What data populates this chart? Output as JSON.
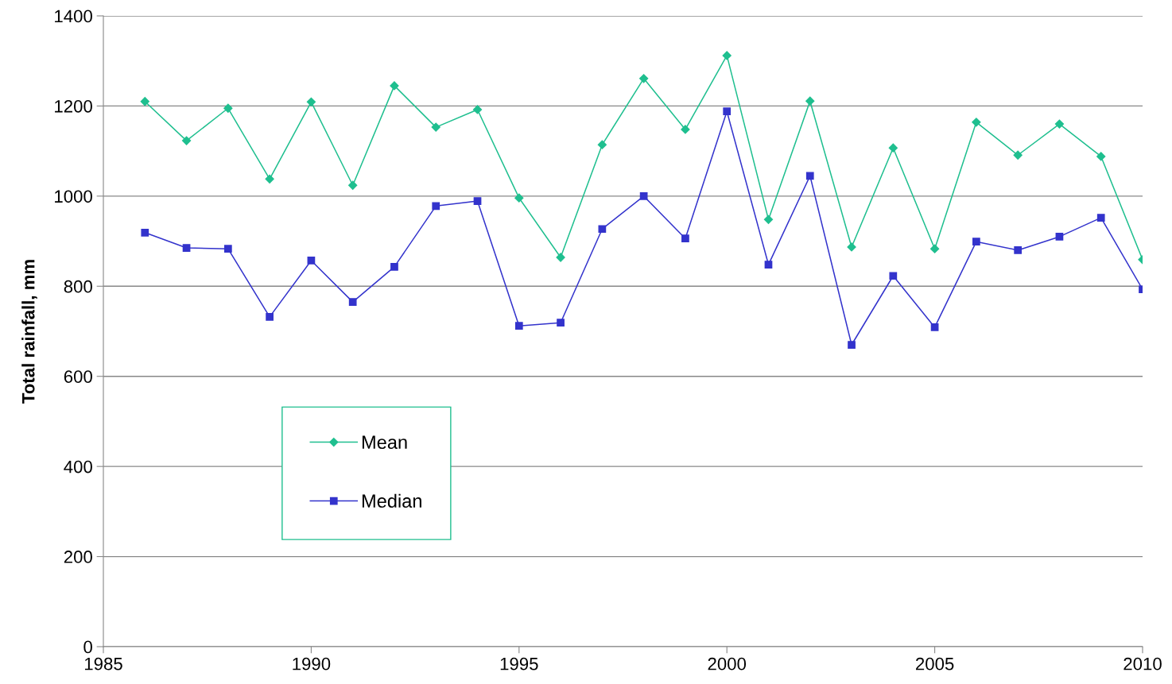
{
  "chart_data": {
    "type": "line",
    "ylabel": "Total rainfall, mm",
    "x": [
      1986,
      1987,
      1988,
      1989,
      1990,
      1991,
      1992,
      1993,
      1994,
      1995,
      1996,
      1997,
      1998,
      1999,
      2000,
      2001,
      2002,
      2003,
      2004,
      2005,
      2006,
      2007,
      2008,
      2009,
      2010
    ],
    "series": [
      {
        "name": "Mean",
        "color": "#1fbf8f",
        "marker": "diamond",
        "values": [
          1210,
          1123,
          1195,
          1038,
          1209,
          1024,
          1245,
          1153,
          1192,
          996,
          864,
          1114,
          1261,
          1148,
          1312,
          948,
          1211,
          887,
          1107,
          883,
          1164,
          1091,
          1160,
          1088,
          859
        ]
      },
      {
        "name": "Median",
        "color": "#3333cc",
        "marker": "square",
        "values": [
          919,
          885,
          883,
          732,
          857,
          765,
          843,
          978,
          989,
          712,
          719,
          927,
          1000,
          906,
          1188,
          848,
          1045,
          670,
          823,
          709,
          899,
          880,
          910,
          952,
          793
        ]
      }
    ],
    "xlim": [
      1985,
      2010
    ],
    "xticks": [
      1985,
      1990,
      1995,
      2000,
      2005,
      2010
    ],
    "ylim": [
      0,
      1400
    ],
    "yticks": [
      0,
      200,
      400,
      600,
      800,
      1000,
      1200,
      1400
    ],
    "grid": "y",
    "legend": "bottom left",
    "line_style": "solid"
  }
}
